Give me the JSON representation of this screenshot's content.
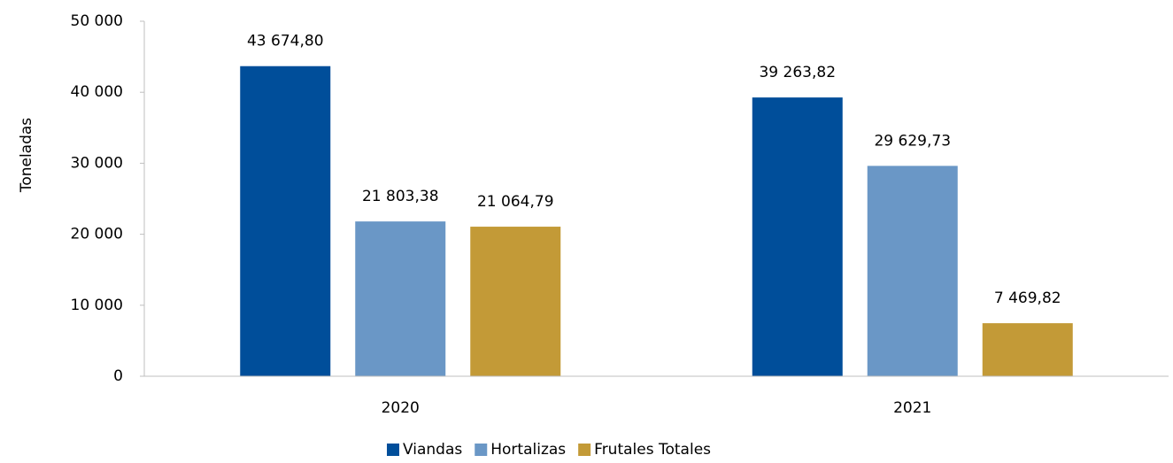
{
  "chart_data": {
    "type": "bar",
    "y_label": "Toneladas",
    "categories": [
      "2020",
      "2021"
    ],
    "series": [
      {
        "name": "Viandas",
        "color": "#004e9a",
        "values": [
          43674.8,
          39263.82
        ],
        "value_labels": [
          "43 674,80",
          "39 263,82"
        ]
      },
      {
        "name": "Hortalizas",
        "color": "#6a97c6",
        "values": [
          21803.38,
          29629.73
        ],
        "value_labels": [
          "21 803,38",
          "29 629,73"
        ]
      },
      {
        "name": "Frutales Totales",
        "color": "#c39a37",
        "values": [
          21064.79,
          7469.82
        ],
        "value_labels": [
          "21 064,79",
          "7 469,82"
        ]
      }
    ],
    "ylim": [
      0,
      50000
    ],
    "yticks": [
      0,
      {
        "value": 10000,
        "label": "10 000"
      },
      {
        "value": 20000,
        "label": "20 000"
      },
      {
        "value": 30000,
        "label": "30 000"
      },
      {
        "value": 40000,
        "label": "40 000"
      },
      {
        "value": 50000,
        "label": "50 000"
      }
    ],
    "grid": false,
    "legend": "bottom"
  }
}
